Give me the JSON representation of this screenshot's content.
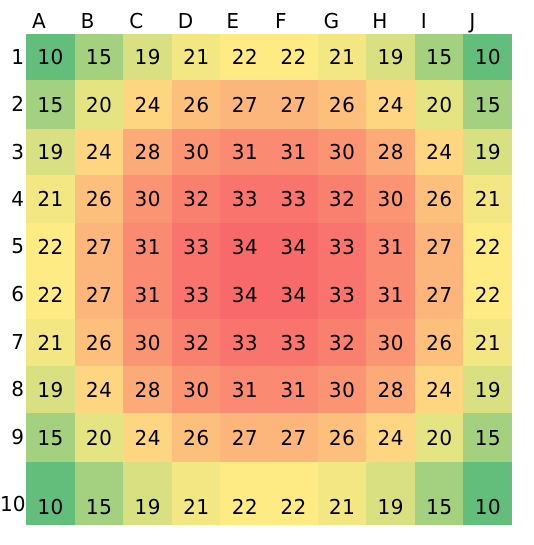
{
  "chart_data": {
    "type": "heatmap",
    "columns": [
      "A",
      "B",
      "C",
      "D",
      "E",
      "F",
      "G",
      "H",
      "I",
      "J"
    ],
    "rows": [
      "1",
      "2",
      "3",
      "4",
      "5",
      "6",
      "7",
      "8",
      "9",
      "10"
    ],
    "values": [
      [
        10,
        15,
        19,
        21,
        22,
        22,
        21,
        19,
        15,
        10
      ],
      [
        15,
        20,
        24,
        26,
        27,
        27,
        26,
        24,
        20,
        15
      ],
      [
        19,
        24,
        28,
        30,
        31,
        31,
        30,
        28,
        24,
        19
      ],
      [
        21,
        26,
        30,
        32,
        33,
        33,
        32,
        30,
        26,
        21
      ],
      [
        22,
        27,
        31,
        33,
        34,
        34,
        33,
        31,
        27,
        22
      ],
      [
        22,
        27,
        31,
        33,
        34,
        34,
        33,
        31,
        27,
        22
      ],
      [
        21,
        26,
        30,
        32,
        33,
        33,
        32,
        30,
        26,
        21
      ],
      [
        19,
        24,
        28,
        30,
        31,
        31,
        30,
        28,
        24,
        19
      ],
      [
        15,
        20,
        24,
        26,
        27,
        27,
        26,
        24,
        20,
        15
      ],
      [
        10,
        15,
        19,
        21,
        22,
        22,
        21,
        19,
        15,
        10
      ]
    ],
    "color_scale": {
      "min_color": "#63be7b",
      "mid_color": "#ffeb84",
      "max_color": "#f8696b"
    }
  }
}
